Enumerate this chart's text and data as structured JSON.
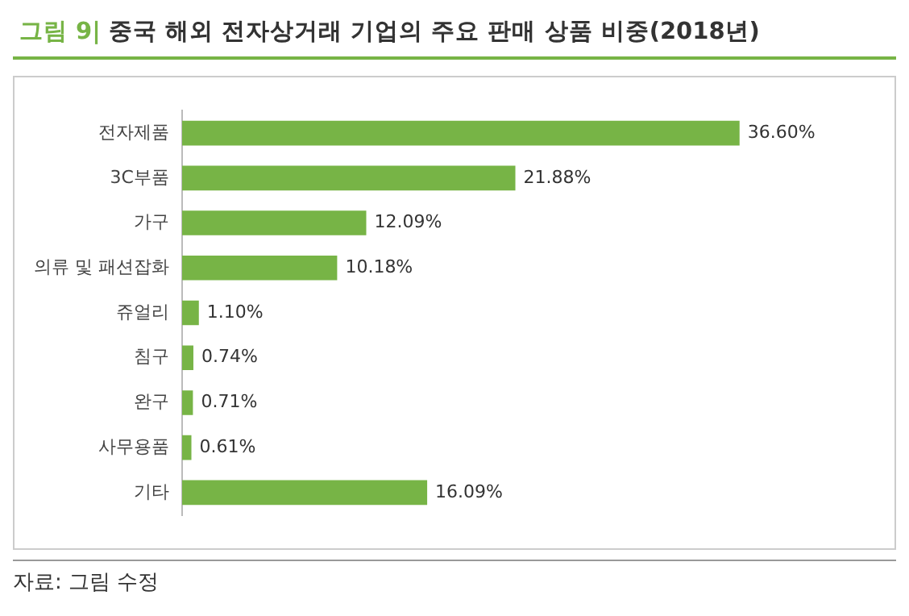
{
  "chart_data": {
    "type": "bar",
    "orientation": "horizontal",
    "title": "그림 9| 중국 해외 전자상거래 기업의 주요 판매 상품 비중(2018년)",
    "categories": [
      "전자제품",
      "3C부품",
      "가구",
      "의류 및 패션잡화",
      "쥬얼리",
      "침구",
      "완구",
      "사무용품",
      "기타"
    ],
    "values": [
      36.6,
      21.88,
      12.09,
      10.18,
      1.1,
      0.74,
      0.71,
      0.61,
      16.09
    ],
    "value_labels": [
      "36.60%",
      "21.88%",
      "12.09%",
      "10.18%",
      "1.10%",
      "0.74%",
      "0.71%",
      "0.61%",
      "16.09%"
    ],
    "color": "#77b446",
    "grid": false,
    "legend": false,
    "annotations": [
      "자료: 그림 수정"
    ]
  }
}
